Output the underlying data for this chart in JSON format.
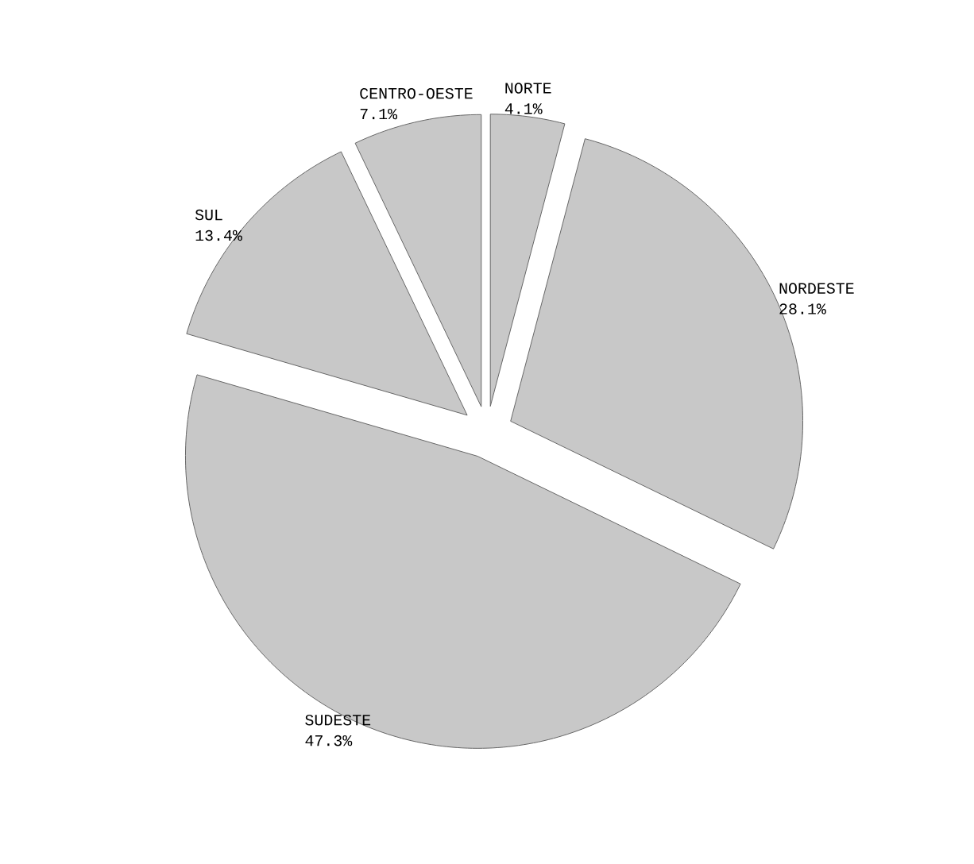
{
  "chart_data": {
    "type": "pie",
    "categories": [
      "NORTE",
      "NORDESTE",
      "SUDESTE",
      "SUL",
      "CENTRO-OESTE"
    ],
    "values": [
      4.1,
      28.1,
      47.3,
      13.4,
      7.1
    ],
    "value_labels": [
      "4.1%",
      "28.1%",
      "47.3%",
      "13.4%",
      "7.1%"
    ],
    "colors": [
      "#c8c8c8",
      "#c8c8c8",
      "#c8c8c8",
      "#c8c8c8",
      "#c8c8c8"
    ]
  }
}
